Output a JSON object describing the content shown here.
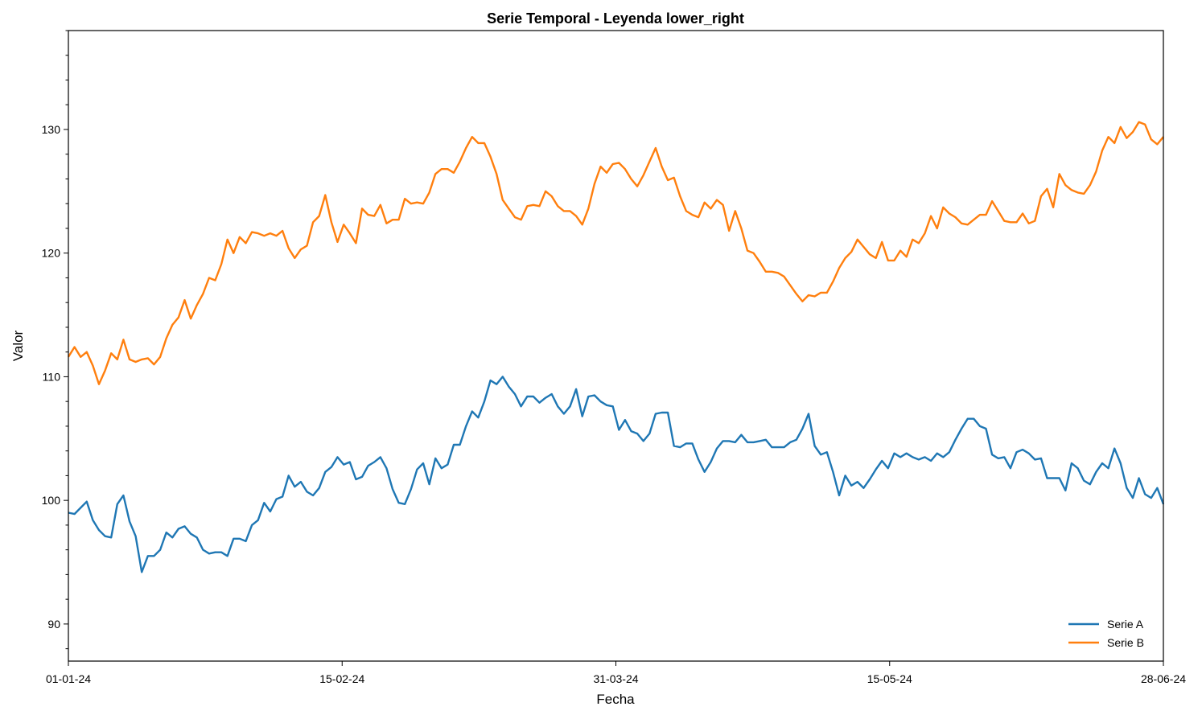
{
  "chart_data": {
    "type": "line",
    "title": "Serie Temporal - Leyenda lower_right",
    "xlabel": "Fecha",
    "ylabel": "Valor",
    "xlim": [
      "2024-01-01",
      "2024-06-28"
    ],
    "ylim": [
      87,
      138
    ],
    "x_ticks": [
      "01-01-24",
      "15-02-24",
      "31-03-24",
      "15-05-24",
      "28-06-24"
    ],
    "y_ticks": [
      90,
      100,
      110,
      120,
      130
    ],
    "legend_position": "lower-right",
    "grid": false,
    "x_start": "2024-01-01",
    "x_step": "1 day",
    "series": [
      {
        "name": "Serie A",
        "color": "#1f77b4",
        "values": [
          99.0,
          98.9,
          99.4,
          99.9,
          98.4,
          97.6,
          97.1,
          97.0,
          99.7,
          100.4,
          98.3,
          97.1,
          94.2,
          95.5,
          95.5,
          96.0,
          97.4,
          97.0,
          97.7,
          97.9,
          97.3,
          97.0,
          96.0,
          95.7,
          95.8,
          95.8,
          95.5,
          96.9,
          96.9,
          96.7,
          98.0,
          98.4,
          99.8,
          99.1,
          100.1,
          100.3,
          102.0,
          101.1,
          101.5,
          100.7,
          100.4,
          101.0,
          102.3,
          102.7,
          103.5,
          102.9,
          103.1,
          101.7,
          101.9,
          102.8,
          103.1,
          103.5,
          102.6,
          100.9,
          99.8,
          99.7,
          100.9,
          102.5,
          103.0,
          101.3,
          103.4,
          102.6,
          102.9,
          104.5,
          104.5,
          106.0,
          107.2,
          106.7,
          108.0,
          109.7,
          109.4,
          110.0,
          109.2,
          108.6,
          107.6,
          108.4,
          108.4,
          107.9,
          108.3,
          108.6,
          107.6,
          107.0,
          107.6,
          109.0,
          106.8,
          108.4,
          108.5,
          108.0,
          107.7,
          107.6,
          105.7,
          106.5,
          105.6,
          105.4,
          104.8,
          105.4,
          107.0,
          107.1,
          107.1,
          104.4,
          104.3,
          104.6,
          104.6,
          103.3,
          102.3,
          103.1,
          104.2,
          104.8,
          104.8,
          104.7,
          105.3,
          104.7,
          104.7,
          104.8,
          104.9,
          104.3,
          104.3,
          104.3,
          104.7,
          104.9,
          105.8,
          107.0,
          104.4,
          103.7,
          103.9,
          102.3,
          100.4,
          102.0,
          101.2,
          101.5,
          101.0,
          101.7,
          102.5,
          103.2,
          102.6,
          103.8,
          103.5,
          103.8,
          103.5,
          103.3,
          103.5,
          103.2,
          103.8,
          103.5,
          103.9,
          104.9,
          105.8,
          106.6,
          106.6,
          106.0,
          105.8,
          103.7,
          103.4,
          103.5,
          102.6,
          103.9,
          104.1,
          103.8,
          103.3,
          103.4,
          101.8,
          101.8,
          101.8,
          100.8,
          103.0,
          102.6,
          101.6,
          101.3,
          102.3,
          103.0,
          102.6,
          104.2,
          103.0,
          101.0,
          100.2,
          101.8,
          100.5,
          100.2,
          101.0,
          99.7
        ]
      },
      {
        "name": "Serie B",
        "color": "#ff7f0e",
        "values": [
          111.6,
          112.4,
          111.6,
          112.0,
          110.9,
          109.4,
          110.5,
          111.9,
          111.4,
          113.0,
          111.4,
          111.2,
          111.4,
          111.5,
          111.0,
          111.6,
          113.1,
          114.2,
          114.8,
          116.2,
          114.7,
          115.8,
          116.7,
          118.0,
          117.8,
          119.1,
          121.1,
          120.0,
          121.3,
          120.8,
          121.7,
          121.6,
          121.4,
          121.6,
          121.4,
          121.8,
          120.4,
          119.6,
          120.3,
          120.6,
          122.5,
          123.0,
          124.7,
          122.5,
          120.9,
          122.3,
          121.6,
          120.8,
          123.6,
          123.1,
          123.0,
          123.9,
          122.4,
          122.7,
          122.7,
          124.4,
          124.0,
          124.1,
          124.0,
          124.9,
          126.4,
          126.8,
          126.8,
          126.5,
          127.4,
          128.5,
          129.4,
          128.9,
          128.9,
          127.8,
          126.4,
          124.3,
          123.6,
          122.9,
          122.7,
          123.8,
          123.9,
          123.8,
          125.0,
          124.6,
          123.8,
          123.4,
          123.4,
          123.0,
          122.3,
          123.6,
          125.6,
          127.0,
          126.5,
          127.2,
          127.3,
          126.8,
          126.0,
          125.4,
          126.3,
          127.4,
          128.5,
          127.0,
          125.9,
          126.1,
          124.6,
          123.4,
          123.1,
          122.9,
          124.1,
          123.6,
          124.3,
          123.9,
          121.8,
          123.4,
          122.0,
          120.2,
          120.0,
          119.3,
          118.5,
          118.5,
          118.4,
          118.1,
          117.4,
          116.7,
          116.1,
          116.6,
          116.5,
          116.8,
          116.8,
          117.7,
          118.8,
          119.6,
          120.1,
          121.1,
          120.5,
          119.9,
          119.6,
          120.9,
          119.4,
          119.4,
          120.2,
          119.7,
          121.1,
          120.8,
          121.6,
          123.0,
          122.0,
          123.7,
          123.2,
          122.9,
          122.4,
          122.3,
          122.7,
          123.1,
          123.1,
          124.2,
          123.4,
          122.6,
          122.5,
          122.5,
          123.2,
          122.4,
          122.6,
          124.6,
          125.2,
          123.7,
          126.4,
          125.5,
          125.1,
          124.9,
          124.8,
          125.5,
          126.6,
          128.3,
          129.4,
          128.9,
          130.2,
          129.3,
          129.8,
          130.6,
          130.4,
          129.2,
          128.8,
          129.4
        ]
      }
    ]
  }
}
